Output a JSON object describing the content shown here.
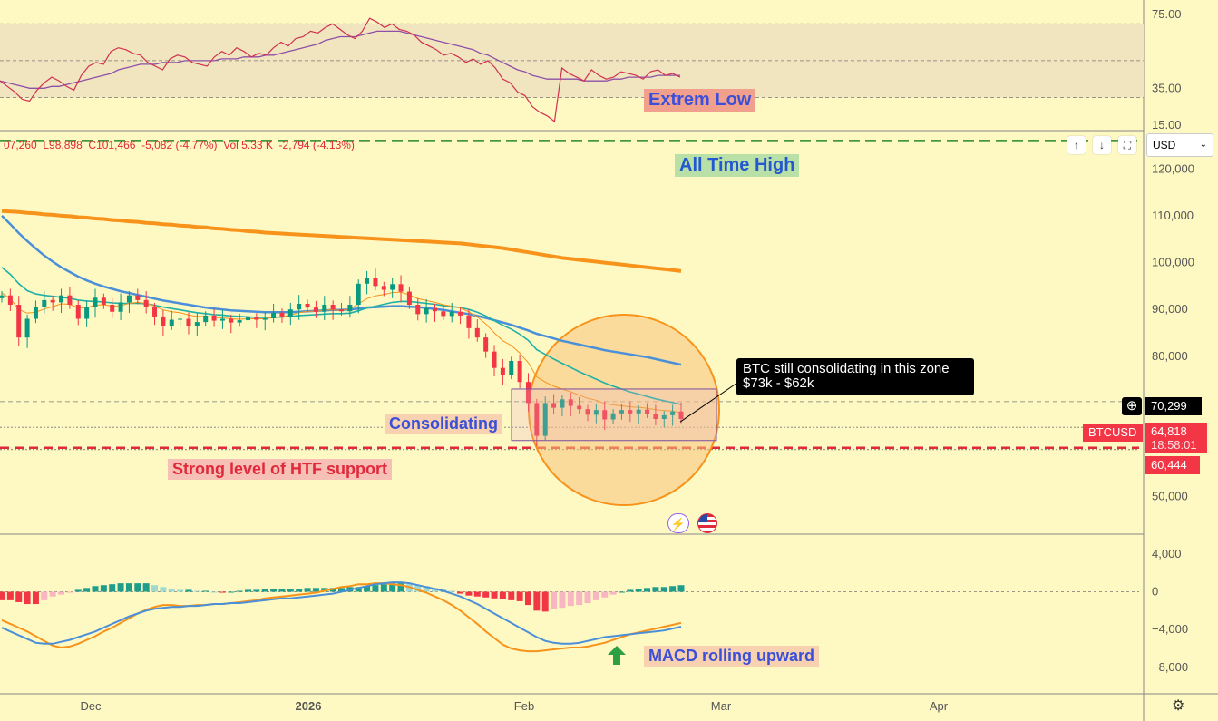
{
  "colors": {
    "background": "#fef9c3",
    "bull": "#089981",
    "bear": "#f23645",
    "ma_fast": "#f7931a",
    "ma_teal": "#1fb0a8",
    "ma_blue": "#4a8fd8",
    "ma_long": "#f7931a",
    "rsi_band": "#f1e5bf",
    "rsi_line": "#d0314f",
    "rsi_ma": "#8e4fa8",
    "macd_line": "#4a8fd8",
    "signal_line": "#f7931a",
    "ath_line": "#2a8a2a",
    "support_line": "#e0293a"
  },
  "header": {
    "ohlc": "07,260  L98,898  C101,466  -5,082 (-4.77%)  Vol 5.33 K  -2,794 (-4.13%)"
  },
  "toolbar": {
    "currency": "USD",
    "up_icon": "↑",
    "down_icon": "↓",
    "expand_icon": "⛶"
  },
  "annotations": {
    "rsi_note": "Extrem Low",
    "ath": "All Time High",
    "consolidating": "Consolidating",
    "support": "Strong level of HTF support",
    "callout_line1": "BTC still consolidating in this zone",
    "callout_line2": "$73k - $62k",
    "macd_note": "MACD rolling upward"
  },
  "price_labels": {
    "crosshair": "70,299",
    "symbol": "BTCUSD",
    "last": "64,818",
    "countdown": "18:58:01",
    "support": "60,444"
  },
  "x_axis": [
    "Dec",
    "2026",
    "Feb",
    "Mar",
    "Apr"
  ],
  "chart_data": [
    {
      "type": "line",
      "name": "RSI",
      "y_ticks": [
        75,
        35,
        15
      ],
      "ylim": [
        12,
        80
      ],
      "band": [
        30,
        70
      ],
      "rsi": [
        39,
        36,
        33,
        29,
        28,
        34,
        38,
        41,
        39,
        36,
        34,
        42,
        47,
        49,
        48,
        55,
        57,
        56,
        54,
        53,
        49,
        47,
        45,
        51,
        53,
        52,
        49,
        48,
        47,
        52,
        55,
        53,
        57,
        55,
        52,
        54,
        53,
        57,
        60,
        58,
        62,
        63,
        66,
        65,
        68,
        70,
        67,
        64,
        62,
        66,
        73,
        71,
        68,
        70,
        67,
        66,
        64,
        60,
        58,
        56,
        53,
        54,
        52,
        49,
        51,
        48,
        50,
        46,
        40,
        38,
        33,
        31,
        25,
        22,
        20,
        17,
        46,
        43,
        41,
        39,
        45,
        42,
        40,
        41,
        44,
        43,
        42,
        40,
        44,
        45,
        42,
        43,
        41
      ],
      "rsi_ma": [
        39,
        38,
        37,
        36,
        35,
        35,
        35,
        36,
        36,
        37,
        38,
        39,
        40,
        41,
        42,
        43,
        45,
        46,
        47,
        48,
        48,
        48,
        49,
        49,
        49,
        50,
        50,
        50,
        50,
        50,
        51,
        51,
        51,
        52,
        52,
        52,
        53,
        53,
        54,
        55,
        56,
        57,
        58,
        59,
        61,
        62,
        63,
        63,
        63,
        64,
        65,
        66,
        66,
        66,
        66,
        65,
        64,
        63,
        62,
        61,
        60,
        59,
        58,
        57,
        56,
        54,
        53,
        51,
        49,
        47,
        45,
        44,
        42,
        41,
        40,
        40,
        40,
        40,
        40,
        39,
        39,
        39,
        39,
        40,
        40,
        41,
        41,
        41,
        41,
        42,
        42,
        42,
        42
      ]
    },
    {
      "type": "candlestick",
      "name": "BTCUSD",
      "y_ticks": [
        120000,
        110000,
        100000,
        90000,
        80000,
        70000,
        60000,
        50000
      ],
      "ylim": [
        42000,
        128000
      ],
      "all_time_high": 126000,
      "support": 60444,
      "last": 64818,
      "consolidation_zone": [
        62000,
        73000
      ],
      "close": [
        93000,
        91000,
        84000,
        88000,
        90500,
        92000,
        91500,
        93000,
        91000,
        88000,
        90500,
        92500,
        91000,
        89500,
        91500,
        93000,
        92000,
        90500,
        88500,
        86500,
        87800,
        88000,
        86500,
        87300,
        88700,
        87600,
        88000,
        87200,
        87700,
        88300,
        87800,
        88100,
        89300,
        88500,
        90000,
        91200,
        90400,
        89500,
        91000,
        90000,
        89600,
        91000,
        95500,
        96800,
        95000,
        94200,
        95400,
        93800,
        91000,
        89000,
        90300,
        89600,
        88600,
        89500,
        88700,
        86000,
        84000,
        81000,
        77500,
        76000,
        79000,
        74500,
        70000,
        63000,
        70000,
        69000,
        70800,
        69400,
        68700,
        67500,
        68500,
        66500,
        67800,
        68500,
        67800,
        68600,
        67700,
        66600,
        67400,
        68200,
        66600
      ],
      "ema_fast": [
        93500,
        92300,
        90000,
        89200,
        89400,
        90100,
        90600,
        91200,
        91100,
        90300,
        90400,
        90900,
        91000,
        90700,
        90800,
        91300,
        91500,
        91300,
        90700,
        89900,
        89500,
        89300,
        88800,
        88500,
        88500,
        88300,
        88200,
        88000,
        87900,
        88000,
        88000,
        88000,
        88300,
        88400,
        88800,
        89300,
        89600,
        89600,
        89900,
        89900,
        89800,
        90100,
        91200,
        92300,
        92900,
        93200,
        93600,
        93700,
        93100,
        92300,
        91900,
        91500,
        91000,
        90700,
        90300,
        89500,
        88400,
        86900,
        85000,
        83300,
        82300,
        80700,
        78600,
        75600,
        74500,
        73600,
        73000,
        72400,
        71700,
        71000,
        70600,
        69900,
        69600,
        69400,
        69200,
        69100,
        68900,
        68600,
        68400,
        68300,
        67900
      ],
      "ema_teal": [
        99000,
        97500,
        95500,
        94000,
        93300,
        93000,
        92800,
        92600,
        92400,
        92000,
        91800,
        91700,
        91600,
        91400,
        91300,
        91300,
        91300,
        91200,
        90900,
        90500,
        90200,
        89900,
        89600,
        89300,
        89100,
        88900,
        88800,
        88600,
        88500,
        88400,
        88300,
        88300,
        88300,
        88400,
        88500,
        88700,
        88800,
        88900,
        89000,
        89100,
        89100,
        89200,
        89700,
        90300,
        90700,
        91100,
        91500,
        91700,
        91700,
        91500,
        91300,
        91100,
        90800,
        90600,
        90400,
        90000,
        89400,
        88600,
        87600,
        86600,
        85800,
        84700,
        83400,
        81400,
        80400,
        79400,
        78500,
        77600,
        76700,
        75900,
        75100,
        74300,
        73600,
        73000,
        72400,
        71900,
        71400,
        70900,
        70500,
        70100,
        69700
      ],
      "ema_blue": [
        110000,
        108200,
        106300,
        104600,
        103000,
        101500,
        100200,
        99000,
        98000,
        97000,
        96200,
        95500,
        94900,
        94400,
        93900,
        93500,
        93100,
        92700,
        92300,
        91900,
        91600,
        91300,
        91000,
        90700,
        90400,
        90200,
        90000,
        89800,
        89700,
        89600,
        89500,
        89400,
        89400,
        89400,
        89400,
        89500,
        89600,
        89700,
        89800,
        89900,
        89900,
        90000,
        90200,
        90400,
        90500,
        90600,
        90700,
        90700,
        90600,
        90500,
        90300,
        90100,
        89900,
        89600,
        89300,
        89000,
        88600,
        88200,
        87700,
        87200,
        86700,
        86100,
        85500,
        84800,
        84300,
        83800,
        83300,
        82900,
        82500,
        82100,
        81700,
        81300,
        81000,
        80700,
        80400,
        80100,
        79800,
        79400,
        79000,
        78600,
        78200
      ],
      "sma_long": [
        111000,
        110900,
        110800,
        110600,
        110500,
        110300,
        110200,
        110000,
        109900,
        109700,
        109600,
        109400,
        109300,
        109100,
        109000,
        108800,
        108700,
        108500,
        108400,
        108200,
        108100,
        107900,
        107800,
        107600,
        107500,
        107300,
        107200,
        107000,
        106900,
        106700,
        106600,
        106400,
        106300,
        106200,
        106100,
        106000,
        105900,
        105800,
        105700,
        105600,
        105500,
        105400,
        105300,
        105200,
        105100,
        105000,
        104900,
        104800,
        104700,
        104600,
        104500,
        104400,
        104300,
        104200,
        104100,
        103900,
        103700,
        103500,
        103300,
        103100,
        102800,
        102500,
        102200,
        101900,
        101600,
        101300,
        101000,
        100800,
        100600,
        100400,
        100200,
        100000,
        99800,
        99600,
        99400,
        99200,
        99000,
        98800,
        98600,
        98400,
        98200
      ]
    },
    {
      "type": "bar",
      "name": "MACD",
      "y_ticks": [
        4000,
        0,
        -4000,
        -8000
      ],
      "ylim": [
        -10800,
        6000
      ],
      "histogram": [
        -900,
        -900,
        -1100,
        -1300,
        -1300,
        -900,
        -500,
        -300,
        -100,
        200,
        400,
        600,
        700,
        800,
        900,
        900,
        900,
        900,
        700,
        500,
        300,
        200,
        200,
        100,
        100,
        0,
        -100,
        0,
        100,
        200,
        200,
        300,
        300,
        300,
        300,
        300,
        400,
        400,
        400,
        400,
        400,
        500,
        500,
        600,
        700,
        800,
        900,
        900,
        800,
        700,
        600,
        400,
        300,
        100,
        -200,
        -400,
        -500,
        -600,
        -700,
        -800,
        -900,
        -1000,
        -1400,
        -2000,
        -2100,
        -1800,
        -1700,
        -1500,
        -1400,
        -1200,
        -900,
        -600,
        -300,
        0,
        200,
        300,
        400,
        500,
        500,
        600,
        700
      ],
      "macd": [
        -3800,
        -4200,
        -4600,
        -5000,
        -5400,
        -5500,
        -5500,
        -5300,
        -5100,
        -4800,
        -4500,
        -4200,
        -3800,
        -3400,
        -3000,
        -2600,
        -2300,
        -2000,
        -1800,
        -1700,
        -1600,
        -1600,
        -1500,
        -1500,
        -1400,
        -1300,
        -1300,
        -1200,
        -1200,
        -1100,
        -1000,
        -900,
        -800,
        -700,
        -700,
        -600,
        -500,
        -400,
        -300,
        -200,
        0,
        200,
        400,
        600,
        800,
        900,
        1000,
        1000,
        900,
        700,
        500,
        300,
        100,
        -200,
        -500,
        -900,
        -1300,
        -1800,
        -2300,
        -2800,
        -3300,
        -3800,
        -4300,
        -4800,
        -5200,
        -5400,
        -5500,
        -5500,
        -5400,
        -5200,
        -5000,
        -4800,
        -4700,
        -4600,
        -4500,
        -4400,
        -4300,
        -4200,
        -4100,
        -3900,
        -3700
      ],
      "signal": [
        -3000,
        -3400,
        -3800,
        -4200,
        -4700,
        -5200,
        -5700,
        -5900,
        -5800,
        -5500,
        -5100,
        -4700,
        -4200,
        -3800,
        -3300,
        -2800,
        -2300,
        -1900,
        -1600,
        -1400,
        -1400,
        -1500,
        -1500,
        -1400,
        -1400,
        -1300,
        -1300,
        -1200,
        -1100,
        -1000,
        -900,
        -700,
        -600,
        -500,
        -400,
        -300,
        -200,
        -100,
        100,
        300,
        500,
        600,
        800,
        800,
        900,
        900,
        800,
        700,
        500,
        200,
        -100,
        -500,
        -900,
        -1400,
        -2000,
        -2700,
        -3400,
        -4200,
        -4900,
        -5600,
        -6000,
        -6200,
        -6300,
        -6300,
        -6200,
        -6100,
        -6000,
        -5900,
        -5900,
        -5800,
        -5600,
        -5400,
        -5100,
        -4800,
        -4500,
        -4300,
        -4100,
        -3900,
        -3700,
        -3500,
        -3300
      ]
    }
  ]
}
